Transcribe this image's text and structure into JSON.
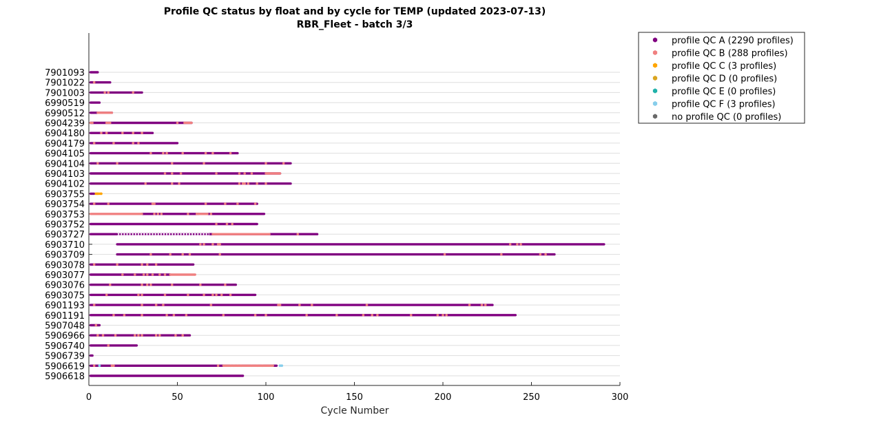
{
  "chart_data": {
    "type": "scatter",
    "title": "Profile QC status by float and by cycle for TEMP (updated 2023-07-13)",
    "subtitle": "RBR_Fleet - batch 3/3",
    "xlabel": "Cycle Number",
    "ylabel": "",
    "xlim": [
      0,
      300
    ],
    "xticks": [
      0,
      50,
      100,
      150,
      200,
      250,
      300
    ],
    "grid": true,
    "legend_position": "outside-top-right",
    "colors": {
      "A": "#800080",
      "B": "#f08080",
      "C": "#ffa500",
      "D": "#daa520",
      "E": "#20b2aa",
      "F": "#87ceeb",
      "none": "#696969"
    },
    "legend": [
      {
        "key": "A",
        "label": "profile QC A (2290 profiles)"
      },
      {
        "key": "B",
        "label": "profile QC B (288 profiles)"
      },
      {
        "key": "C",
        "label": "profile QC C (3 profiles)"
      },
      {
        "key": "D",
        "label": "profile QC D (0 profiles)"
      },
      {
        "key": "E",
        "label": "profile QC E (0 profiles)"
      },
      {
        "key": "F",
        "label": "profile QC F (3 profiles)"
      },
      {
        "key": "none",
        "label": "no profile QC (0 profiles)"
      }
    ],
    "floats": [
      {
        "id": "7901093",
        "start": 1,
        "end": 5,
        "b": [],
        "bRanges": []
      },
      {
        "id": "7901022",
        "start": 1,
        "end": 12,
        "b": [
          3
        ],
        "bRanges": []
      },
      {
        "id": "7901003",
        "start": 1,
        "end": 30,
        "b": [
          9,
          11,
          25
        ],
        "bRanges": []
      },
      {
        "id": "6990519",
        "start": 1,
        "end": 6,
        "b": [],
        "bRanges": []
      },
      {
        "id": "6990512",
        "start": 1,
        "end": 13,
        "b": [],
        "bRanges": [
          [
            5,
            13
          ]
        ]
      },
      {
        "id": "6904239",
        "start": 1,
        "end": 58,
        "b": [
          1,
          2,
          10,
          11,
          12,
          50
        ],
        "bRanges": [
          [
            54,
            58
          ]
        ]
      },
      {
        "id": "6904180",
        "start": 1,
        "end": 36,
        "b": [
          7,
          10,
          19,
          25,
          30
        ],
        "bRanges": []
      },
      {
        "id": "6904179",
        "start": 1,
        "end": 50,
        "b": [
          3,
          14,
          25,
          28
        ],
        "bRanges": []
      },
      {
        "id": "6904105",
        "start": 1,
        "end": 84,
        "b": [
          35,
          42,
          44,
          53,
          66,
          70,
          80
        ],
        "bRanges": []
      },
      {
        "id": "6904104",
        "start": 1,
        "end": 114,
        "b": [
          5,
          16,
          47,
          65,
          100,
          110
        ],
        "bRanges": []
      },
      {
        "id": "6904103",
        "start": 1,
        "end": 108,
        "b": [
          43,
          47,
          52,
          72,
          85,
          88,
          92
        ],
        "bRanges": [
          [
            100,
            108
          ]
        ]
      },
      {
        "id": "6904102",
        "start": 1,
        "end": 114,
        "b": [
          32,
          47,
          51,
          85,
          87,
          88,
          90,
          95,
          100
        ],
        "bRanges": []
      },
      {
        "id": "6903755",
        "start": 1,
        "end": 3,
        "b": [],
        "bRanges": [],
        "c": [
          4,
          5,
          7
        ]
      },
      {
        "id": "6903754",
        "start": 1,
        "end": 95,
        "b": [
          3,
          11,
          36,
          37,
          66,
          77,
          84,
          94
        ],
        "bRanges": []
      },
      {
        "id": "6903753",
        "start": 30,
        "end": 99,
        "b": [
          37,
          39,
          41,
          56,
          61,
          69
        ],
        "bRanges": [
          [
            1,
            30
          ],
          [
            62,
            67
          ]
        ]
      },
      {
        "id": "6903752",
        "start": 1,
        "end": 95,
        "b": [
          72,
          78,
          81
        ],
        "bRanges": []
      },
      {
        "id": "6903727",
        "start": 1,
        "end": 129,
        "b": [
          118
        ],
        "bRanges": [
          [
            70,
            102
          ]
        ],
        "dots": [
          16,
          68
        ]
      },
      {
        "id": "6903710",
        "start": 16,
        "end": 291,
        "b": [
          63,
          65,
          70,
          73,
          74,
          238,
          242,
          244
        ],
        "bRanges": []
      },
      {
        "id": "6903709",
        "start": 16,
        "end": 263,
        "b": [
          35,
          46,
          53,
          57,
          74,
          201,
          233,
          255,
          258
        ],
        "bRanges": []
      },
      {
        "id": "6903078",
        "start": 1,
        "end": 59,
        "b": [
          3,
          16,
          30,
          33,
          38
        ],
        "bRanges": []
      },
      {
        "id": "6903077",
        "start": 1,
        "end": 46,
        "b": [
          19,
          26,
          31,
          33,
          36,
          40,
          43
        ],
        "bRanges": [
          [
            46,
            60
          ]
        ]
      },
      {
        "id": "6903076",
        "start": 1,
        "end": 83,
        "b": [
          12,
          30,
          33,
          35,
          47,
          63,
          77
        ],
        "bRanges": []
      },
      {
        "id": "6903075",
        "start": 1,
        "end": 94,
        "b": [
          10,
          28,
          30,
          43,
          56,
          65,
          70,
          72,
          75,
          80
        ],
        "bRanges": []
      },
      {
        "id": "6901193",
        "start": 1,
        "end": 228,
        "b": [
          3,
          30,
          38,
          42,
          69,
          107,
          108,
          119,
          126,
          157,
          215,
          222,
          224
        ],
        "bRanges": []
      },
      {
        "id": "6901191",
        "start": 1,
        "end": 241,
        "b": [
          14,
          20,
          30,
          44,
          48,
          55,
          76,
          94,
          100,
          123,
          140,
          155,
          160,
          163,
          182,
          197,
          200,
          202
        ],
        "bRanges": []
      },
      {
        "id": "5907048",
        "start": 1,
        "end": 6,
        "b": [
          4
        ],
        "bRanges": []
      },
      {
        "id": "5906966",
        "start": 1,
        "end": 57,
        "b": [
          5,
          8,
          15,
          26,
          28,
          30,
          38,
          40,
          49,
          53
        ],
        "bRanges": []
      },
      {
        "id": "5906740",
        "start": 1,
        "end": 27,
        "b": [
          11
        ],
        "bRanges": []
      },
      {
        "id": "5906739",
        "start": 1,
        "end": 2,
        "b": [],
        "bRanges": []
      },
      {
        "id": "5906619",
        "start": 1,
        "end": 106,
        "b": [
          3,
          13,
          14,
          73,
          80,
          82,
          84,
          86,
          92,
          95,
          98
        ],
        "bRanges": [
          [
            76,
            104
          ]
        ],
        "f": [
          6,
          108,
          109
        ]
      },
      {
        "id": "5906618",
        "start": 1,
        "end": 87,
        "b": [],
        "bRanges": []
      }
    ]
  }
}
